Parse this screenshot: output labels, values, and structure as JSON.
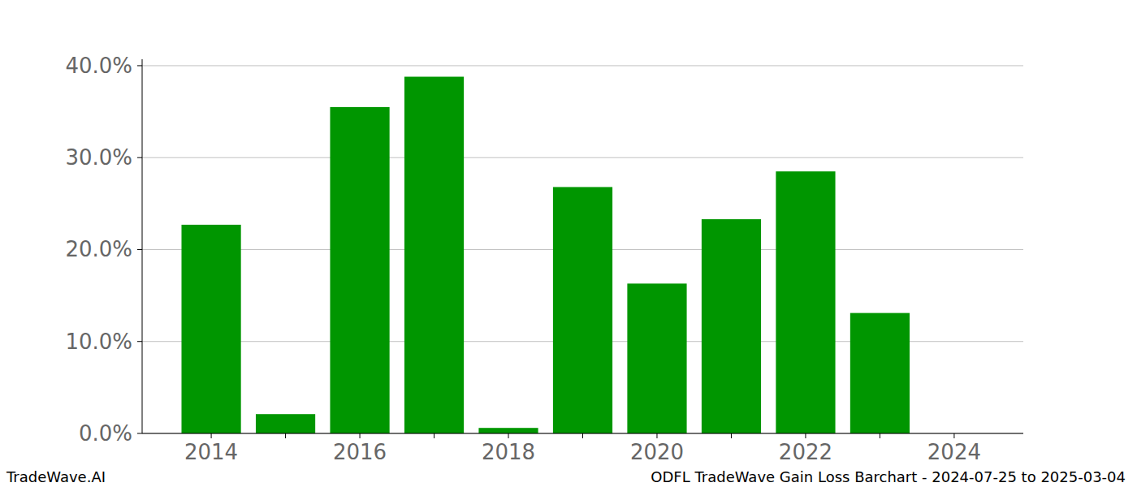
{
  "chart_data": {
    "type": "bar",
    "title": "ODFL TradeWave Gain Loss Barchart - 2024-07-25 to 2025-03-04",
    "annotations": [
      "TradeWave.AI"
    ],
    "categories": [
      "2014",
      null,
      "2016",
      null,
      "2018",
      null,
      "2020",
      null,
      "2022",
      null,
      "2024"
    ],
    "values": [
      22.7,
      2.1,
      35.5,
      38.8,
      0.6,
      26.8,
      16.3,
      23.3,
      28.5,
      13.1,
      0
    ],
    "color": "#009600",
    "ylim": [
      0,
      40.7
    ],
    "yticks": [
      {
        "value": 0,
        "label": "0.0%"
      },
      {
        "value": 10,
        "label": "10.0%"
      },
      {
        "value": 20,
        "label": "20.0%"
      },
      {
        "value": 30,
        "label": "30.0%"
      },
      {
        "value": 40,
        "label": "40.0%"
      }
    ],
    "grid": true
  }
}
